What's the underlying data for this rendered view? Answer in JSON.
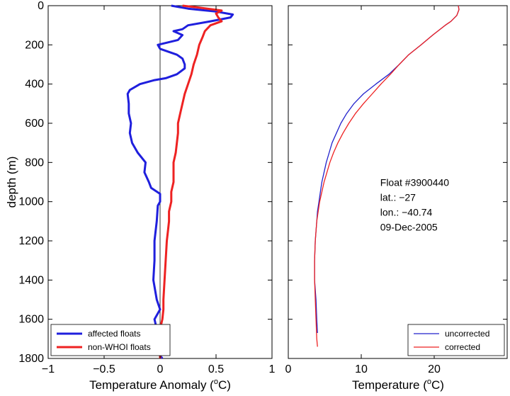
{
  "chart_data": [
    {
      "type": "line",
      "panel": "left",
      "xlabel": "Temperature Anomaly (",
      "xlabel_unit": "o",
      "xlabel_tail": "C)",
      "ylabel": "depth (m)",
      "xlim": [
        -1,
        1
      ],
      "ylim": [
        1800,
        0
      ],
      "xticks": [
        -1,
        -0.5,
        0,
        0.5,
        1
      ],
      "xtick_labels": [
        "−1",
        "−0.5",
        "0",
        "0.5",
        "1"
      ],
      "yticks": [
        0,
        200,
        400,
        600,
        800,
        1000,
        1200,
        1400,
        1600,
        1800
      ],
      "ytick_labels": [
        "0",
        "200",
        "400",
        "600",
        "800",
        "1000",
        "1200",
        "1400",
        "1600",
        "1800"
      ],
      "zero_line": 0,
      "legend_position": "bottom-left",
      "series": [
        {
          "name": "affected floats",
          "color": "#1f1fdd",
          "depth": [
            0,
            15,
            30,
            45,
            60,
            80,
            100,
            120,
            130,
            150,
            175,
            200,
            220,
            250,
            270,
            300,
            320,
            350,
            370,
            380,
            400,
            430,
            450,
            500,
            550,
            600,
            650,
            700,
            750,
            800,
            850,
            900,
            930,
            960,
            1000,
            1020,
            1100,
            1200,
            1300,
            1400,
            1500,
            1550,
            1600,
            1650,
            1700,
            1750,
            1800
          ],
          "x": [
            0.1,
            0.25,
            0.5,
            0.65,
            0.63,
            0.45,
            0.25,
            0.2,
            0.12,
            0.2,
            0.16,
            -0.02,
            0.0,
            0.15,
            0.2,
            0.22,
            0.22,
            0.15,
            0.05,
            -0.05,
            -0.18,
            -0.27,
            -0.29,
            -0.28,
            -0.28,
            -0.26,
            -0.27,
            -0.25,
            -0.2,
            -0.13,
            -0.14,
            -0.1,
            -0.08,
            0.0,
            0.0,
            -0.02,
            -0.03,
            -0.05,
            -0.05,
            -0.06,
            -0.03,
            0.0,
            -0.05,
            -0.03,
            -0.08,
            -0.05,
            0.02
          ]
        },
        {
          "name": "non-WHOI floats",
          "color": "#ee2222",
          "depth": [
            0,
            10,
            25,
            40,
            60,
            80,
            100,
            130,
            160,
            200,
            250,
            300,
            350,
            400,
            450,
            500,
            550,
            600,
            650,
            700,
            750,
            800,
            850,
            900,
            950,
            1000,
            1050,
            1100,
            1150,
            1200,
            1300,
            1400,
            1500,
            1550,
            1600,
            1650,
            1700,
            1800
          ],
          "x": [
            0.2,
            0.35,
            0.55,
            0.5,
            0.52,
            0.55,
            0.45,
            0.4,
            0.38,
            0.35,
            0.33,
            0.3,
            0.28,
            0.25,
            0.22,
            0.2,
            0.18,
            0.16,
            0.16,
            0.15,
            0.14,
            0.12,
            0.12,
            0.12,
            0.1,
            0.1,
            0.08,
            0.08,
            0.07,
            0.06,
            0.05,
            0.04,
            0.03,
            0.03,
            0.02,
            0.0,
            0.0,
            0.0
          ]
        }
      ]
    },
    {
      "type": "line",
      "panel": "right",
      "xlabel": "Temperature (",
      "xlabel_unit": "o",
      "xlabel_tail": "C)",
      "xlim": [
        0,
        30
      ],
      "ylim": [
        1800,
        0
      ],
      "xticks": [
        0,
        10,
        20
      ],
      "xtick_labels": [
        "0",
        "10",
        "20"
      ],
      "legend_position": "bottom-right",
      "annotation": [
        "Float #3900440",
        "lat.: −27",
        "lon.: −40.74",
        "09-Dec-2005"
      ],
      "series": [
        {
          "name": "uncorrected",
          "color": "#2222cc",
          "depth": [
            0,
            20,
            50,
            80,
            100,
            150,
            200,
            250,
            300,
            350,
            400,
            450,
            500,
            550,
            600,
            650,
            700,
            750,
            800,
            850,
            900,
            950,
            1000,
            1050,
            1100,
            1200,
            1300,
            1400,
            1500,
            1600,
            1670
          ],
          "x": [
            23.3,
            23.4,
            23.1,
            22.3,
            21.5,
            19.8,
            18.2,
            16.5,
            15.2,
            13.8,
            12.0,
            10.3,
            9.0,
            8.0,
            7.2,
            6.6,
            6.0,
            5.6,
            5.2,
            4.9,
            4.6,
            4.4,
            4.2,
            4.0,
            3.9,
            3.7,
            3.6,
            3.6,
            3.8,
            3.9,
            4.0
          ]
        },
        {
          "name": "corrected",
          "color": "#ee2222",
          "depth": [
            0,
            20,
            50,
            80,
            100,
            150,
            200,
            250,
            300,
            350,
            400,
            450,
            500,
            550,
            600,
            650,
            700,
            750,
            800,
            850,
            900,
            950,
            1000,
            1050,
            1100,
            1200,
            1300,
            1400,
            1500,
            1600,
            1700,
            1740
          ],
          "x": [
            23.3,
            23.4,
            23.1,
            22.3,
            21.5,
            19.8,
            18.2,
            16.5,
            15.2,
            14.0,
            12.7,
            11.5,
            10.3,
            9.2,
            8.3,
            7.5,
            6.8,
            6.2,
            5.7,
            5.3,
            4.9,
            4.6,
            4.3,
            4.1,
            3.9,
            3.7,
            3.6,
            3.6,
            3.7,
            3.8,
            3.9,
            4.0
          ]
        }
      ]
    }
  ]
}
